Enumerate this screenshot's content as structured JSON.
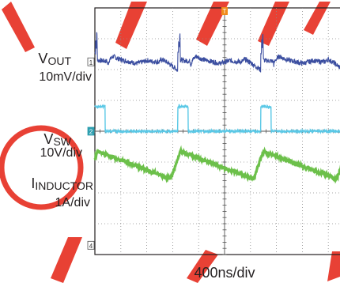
{
  "chart_data": {
    "type": "line",
    "title": "",
    "xlabel": "400ns/div",
    "ylabel": "",
    "grid": true,
    "x_unit": "ns",
    "divisions": {
      "x": 10,
      "y": 8
    },
    "period_ns": 1280,
    "series": [
      {
        "name_main": "V",
        "name_sub": "OUT",
        "scale": "10mV/div",
        "channel": "1",
        "color": "#3b4ea0",
        "baseline_div": 6.25,
        "noise_div": 0.08,
        "points_ns": [
          0,
          150,
          160,
          180,
          240,
          320,
          400,
          500,
          600,
          700,
          780,
          800,
          940,
          1000,
          1060,
          1100,
          1160,
          1200,
          1240,
          1280
        ],
        "values_div": [
          0.05,
          0.02,
          -0.1,
          0.05,
          0.18,
          0.1,
          0.05,
          0.0,
          -0.05,
          0.0,
          0.05,
          0.02,
          0.0,
          0.08,
          0.0,
          -0.05,
          -0.15,
          -0.2,
          -0.28,
          -0.32
        ],
        "spikes": [
          {
            "t_ns": 1250,
            "values_div": [
              0.3,
              0.7,
              0.5,
              0.9,
              0.4,
              0.0
            ]
          }
        ]
      },
      {
        "name_main": "V",
        "name_sub": "SW",
        "scale": "10V/div",
        "channel": "2",
        "color": "#5ac8e6",
        "baseline_div": 4.0,
        "noise_div": 0.04,
        "pulse": {
          "low_div": 0.0,
          "high_div": 0.8,
          "high_start_ns": 1240,
          "high_end_ns": 1280,
          "width_ns": 160
        }
      },
      {
        "name_main": "I",
        "name_sub": "INDUCTOR",
        "scale": "1A/div",
        "channel": "3",
        "color": "#6cc04a",
        "baseline_div": 2.8,
        "noise_div": 0.05,
        "points_ns": [
          0,
          120,
          380,
          1240,
          1280
        ],
        "values_div": [
          0.55,
          0.5,
          0.3,
          -0.35,
          -0.3
        ],
        "ramp_up": {
          "start_ns": 1130,
          "end_ns": 1280,
          "value_div": 0.55
        }
      }
    ],
    "unused_channel": {
      "channel": "4"
    }
  }
}
